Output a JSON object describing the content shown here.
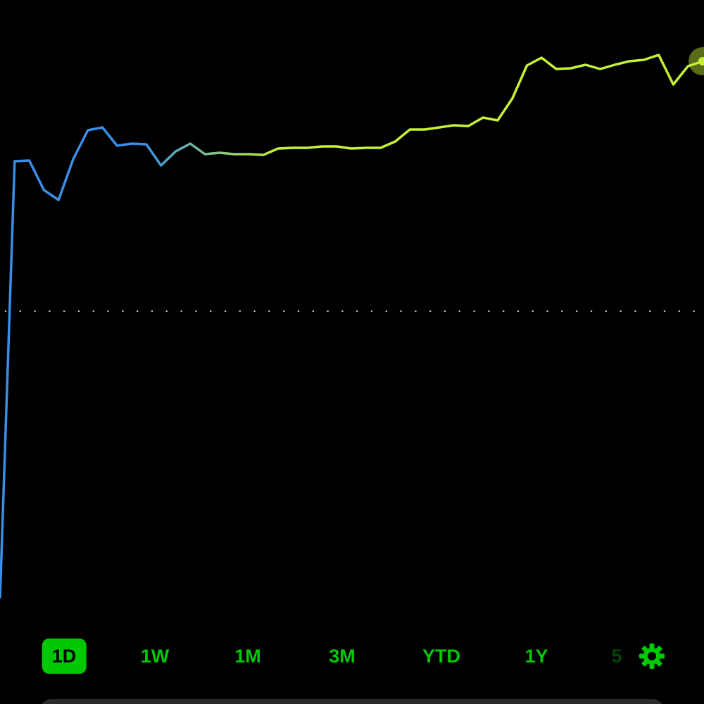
{
  "chart_data": {
    "type": "line",
    "values": [
      15.0,
      77.1,
      77.2,
      73.0,
      71.6,
      77.4,
      81.5,
      81.9,
      79.3,
      79.6,
      79.5,
      76.5,
      78.5,
      79.6,
      78.1,
      78.3,
      78.1,
      78.1,
      78.0,
      78.9,
      79.0,
      79.0,
      79.2,
      79.2,
      78.9,
      79.0,
      79.0,
      79.9,
      81.6,
      81.6,
      81.9,
      82.2,
      82.1,
      83.3,
      82.9,
      86.0,
      90.7,
      91.8,
      90.2,
      90.3,
      90.8,
      90.2,
      90.8,
      91.3,
      91.5,
      92.2,
      88.0,
      90.6,
      91.3
    ],
    "colors": [
      "#3a8ee6",
      "#c6f135"
    ],
    "ylim": [
      0,
      100
    ],
    "reference_line": 55.8
  },
  "controls": {
    "ranges": [
      "1D",
      "1W",
      "1M",
      "3M",
      "YTD",
      "1Y",
      "5"
    ],
    "selected": 0
  }
}
